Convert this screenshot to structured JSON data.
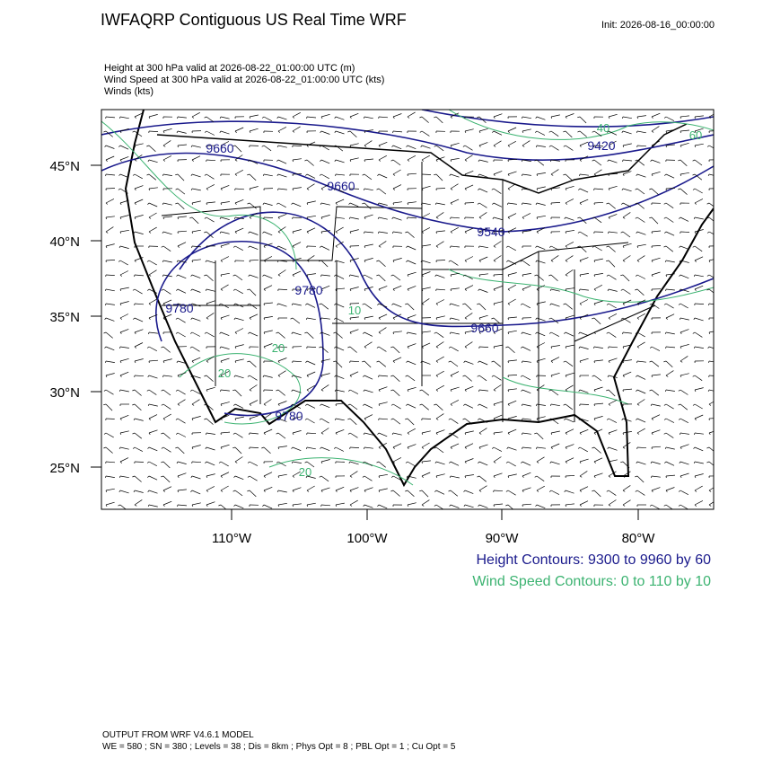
{
  "header": {
    "title": "IWFAQRP Contiguous US Real Time WRF",
    "init": "Init: 2026-08-16_00:00:00"
  },
  "fields": [
    "Height at 300 hPa valid at 2026-08-22_01:00:00 UTC   (m)",
    "Wind Speed at 300 hPa valid at 2026-08-22_01:00:00 UTC   (kts)",
    "Winds   (kts)"
  ],
  "map": {
    "lat_labels": [
      "45°N",
      "40°N",
      "35°N",
      "30°N",
      "25°N"
    ],
    "lon_labels": [
      "110°W",
      "100°W",
      "90°W",
      "80°W"
    ],
    "height_contour_labels": [
      "9660",
      "9660",
      "9540",
      "9420",
      "9780",
      "9780",
      "9660",
      "9780"
    ],
    "speed_contour_labels": [
      "40",
      "60",
      "20",
      "20",
      "10",
      "20"
    ]
  },
  "legend": [
    "Height Contours: 9300 to 9960 by 60",
    "Wind Speed Contours: 0 to 110 by 10"
  ],
  "footer": [
    "OUTPUT FROM WRF V4.6.1 MODEL",
    "WE = 580 ; SN = 380 ; Levels = 38 ; Dis = 8km ; Phys Opt = 8 ; PBL Opt = 1 ; Cu Opt = 5"
  ]
}
